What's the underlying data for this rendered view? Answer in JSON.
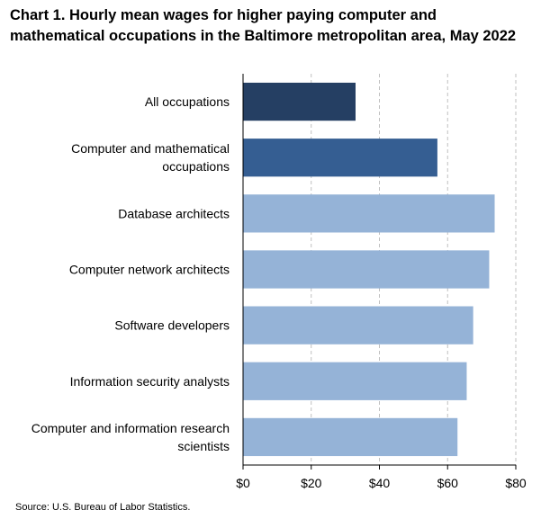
{
  "chart_data": {
    "type": "bar",
    "orientation": "horizontal",
    "title": "Chart 1. Hourly mean wages for higher paying computer and mathematical occupations in the Baltimore metropolitan area, May 2022",
    "categories": [
      "All occupations",
      "Computer and mathematical occupations",
      "Database architects",
      "Computer network architects",
      "Software developers",
      "Information security analysts",
      "Computer and information research scientists"
    ],
    "category_lines": [
      [
        "All occupations"
      ],
      [
        "Computer and mathematical",
        "occupations"
      ],
      [
        "Database architects"
      ],
      [
        "Computer network architects"
      ],
      [
        "Software developers"
      ],
      [
        "Information security analysts"
      ],
      [
        "Computer and information research",
        "scientists"
      ]
    ],
    "values": [
      33.0,
      57.0,
      73.8,
      72.2,
      67.5,
      65.6,
      62.9
    ],
    "colors": [
      "#253f63",
      "#355e92",
      "#95b3d7",
      "#95b3d7",
      "#95b3d7",
      "#95b3d7",
      "#95b3d7"
    ],
    "xlim": [
      0,
      80
    ],
    "xticks": [
      0,
      20,
      40,
      60,
      80
    ],
    "xtick_labels": [
      "$0",
      "$20",
      "$40",
      "$60",
      "$80"
    ],
    "grid": "vertical-dashed",
    "gridline_color": "#bfbfbf",
    "xlabel": "",
    "ylabel": ""
  },
  "source": "Source: U.S. Bureau of Labor Statistics."
}
